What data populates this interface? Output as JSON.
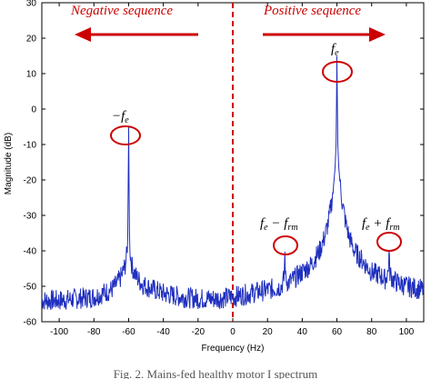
{
  "chart_data": {
    "type": "line",
    "xlabel": "Frequency (Hz)",
    "ylabel": "Magnitude (dB)",
    "xlim": [
      -110,
      110
    ],
    "ylim": [
      -60,
      30
    ],
    "xticks": [
      -100,
      -80,
      -60,
      -40,
      -20,
      0,
      20,
      40,
      60,
      80,
      100
    ],
    "yticks": [
      30,
      20,
      10,
      0,
      -10,
      -20,
      -30,
      -40,
      -50,
      -60
    ],
    "grid": false,
    "line_color": "#1f2fbf",
    "annotation_color": "#cc0000",
    "divider_x": 0,
    "series": [
      {
        "x": [
          -110,
          -100,
          -90,
          -80,
          -75,
          -70,
          -67,
          -64,
          -62,
          -61,
          -60.5,
          -60,
          -59.5,
          -59,
          -58,
          -56,
          -53,
          -50,
          -45,
          -40,
          -30,
          -20,
          -10,
          0,
          10,
          20,
          25,
          28,
          29.5,
          30,
          30.5,
          32,
          35,
          40,
          45,
          50,
          53,
          55,
          57,
          58,
          59,
          59.5,
          60,
          60.5,
          61,
          62,
          63,
          65,
          67,
          70,
          75,
          80,
          85,
          88,
          89.5,
          90,
          90.5,
          92,
          95,
          100,
          110
        ],
        "y": [
          -54,
          -54,
          -53.5,
          -53,
          -52,
          -51,
          -49.5,
          -47,
          -44,
          -41,
          -36,
          -5,
          -36,
          -41,
          -44.5,
          -47,
          -49,
          -50,
          -51,
          -52,
          -53,
          -53.5,
          -53.5,
          -53,
          -52,
          -51,
          -50.5,
          -50,
          -48,
          -41,
          -48,
          -49,
          -48,
          -46,
          -44,
          -40,
          -36,
          -32,
          -26,
          -22,
          -16,
          -10,
          15,
          -10,
          -16,
          -22,
          -26,
          -32,
          -36,
          -40,
          -43,
          -46,
          -47,
          -48,
          -46,
          -41,
          -46,
          -48,
          -49,
          -50,
          -51
        ]
      }
    ],
    "annotations": {
      "negative_label": "Negative sequence",
      "positive_label": "Positive sequence",
      "peak_neg": "−f",
      "peak_neg_sub": "e",
      "peak_pos": "f",
      "peak_pos_sub": "e",
      "side_low": "f",
      "side_low_sub1": "e",
      "side_low_mid": " − f",
      "side_low_sub2": "rm",
      "side_high": "f",
      "side_high_sub1": "e",
      "side_high_mid": " + f",
      "side_high_sub2": "rm"
    },
    "caption": "Fig. 2. Mains-fed healthy motor I spectrum"
  }
}
